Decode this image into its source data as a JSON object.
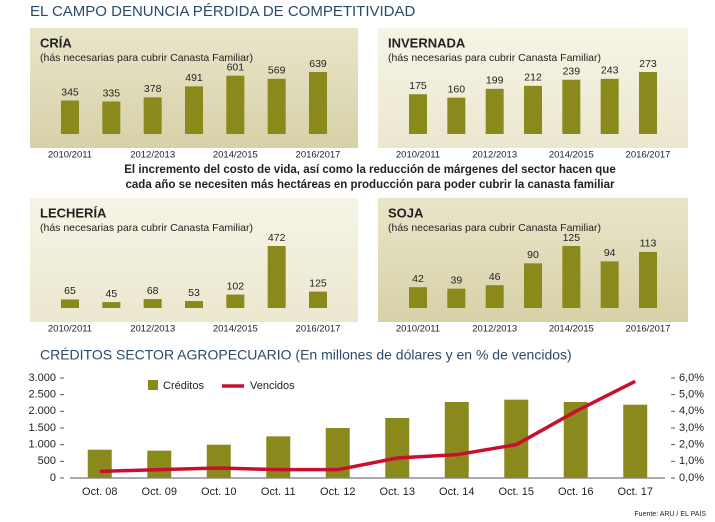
{
  "title": "EL CAMPO DENUNCIA PÉRDIDA DE COMPETITIVIDAD",
  "note": [
    "El incremento del costo de vida, así como la reducción de márgenes del sector hacen que",
    "cada año se necesiten más hectáreas en producción para poder cubrir la canasta familiar"
  ],
  "source": "Fuente: ARU / EL PAIS",
  "chart_data": [
    {
      "type": "bar",
      "title": "CRÍA",
      "subtitle": "(hás necesarias para cubrir Canasta Familiar)",
      "categories": [
        "2010/2011",
        null,
        "2012/2013",
        null,
        "2014/2015",
        null,
        "2016/2017"
      ],
      "values": [
        345,
        335,
        378,
        491,
        601,
        569,
        639
      ],
      "color": "#8a8a1c"
    },
    {
      "type": "bar",
      "title": "INVERNADA",
      "subtitle": "(hás necesarias para cubrir Canasta Familiar)",
      "categories": [
        "2010/2011",
        null,
        "2012/2013",
        null,
        "2014/2015",
        null,
        "2016/2017"
      ],
      "values": [
        175,
        160,
        199,
        212,
        239,
        243,
        273
      ],
      "color": "#8a8a1c"
    },
    {
      "type": "bar",
      "title": "LECHERÍA",
      "subtitle": "(hás necesarias para cubrir Canasta Familiar)",
      "categories": [
        "2010/2011",
        null,
        "2012/2013",
        null,
        "2014/2015",
        null,
        "2016/2017"
      ],
      "values": [
        65,
        45,
        68,
        53,
        102,
        472,
        125
      ],
      "color": "#8a8a1c"
    },
    {
      "type": "bar",
      "title": "SOJA",
      "subtitle": "(hás necesarias para cubrir Canasta Familiar)",
      "categories": [
        "2010/2011",
        null,
        "2012/2013",
        null,
        "2014/2015",
        null,
        "2016/2017"
      ],
      "values": [
        42,
        39,
        46,
        90,
        125,
        94,
        113
      ],
      "color": "#8a8a1c"
    },
    {
      "type": "combo",
      "title": "CRÉDITOS SECTOR AGROPECUARIO (En millones de dólares y en % de vencidos)",
      "categories": [
        "Oct. 08",
        "Oct. 09",
        "Oct. 10",
        "Oct. 11",
        "Oct. 12",
        "Oct. 13",
        "Oct. 14",
        "Oct. 15",
        "Oct. 16",
        "Oct. 17"
      ],
      "series": [
        {
          "name": "Créditos",
          "color": "#8a8a1c",
          "values": [
            850,
            820,
            1000,
            1250,
            1500,
            1800,
            2280,
            2350,
            2280,
            2200
          ]
        },
        {
          "name": "Vencidos",
          "color": "#c8102e",
          "axis": "y2",
          "values": [
            0.4,
            0.5,
            0.6,
            0.5,
            0.5,
            1.2,
            1.4,
            2.0,
            4.0,
            5.8
          ]
        }
      ],
      "ylim": [
        0,
        3000
      ],
      "yticks": [
        {
          "value": 0,
          "label": "0"
        },
        {
          "value": 500,
          "label": "500"
        },
        {
          "value": 1000,
          "label": "1.000"
        },
        {
          "value": 1500,
          "label": "1.500"
        },
        {
          "value": 2000,
          "label": "2.000"
        },
        {
          "value": 2500,
          "label": "2.500"
        },
        {
          "value": 3000,
          "label": "3.000"
        }
      ],
      "y2lim": [
        0,
        6
      ],
      "y2ticks": [
        {
          "value": 0,
          "label": "0,0%"
        },
        {
          "value": 1,
          "label": "1,0%"
        },
        {
          "value": 2,
          "label": "2,0%"
        },
        {
          "value": 3,
          "label": "3,0%"
        },
        {
          "value": 4,
          "label": "4,0%"
        },
        {
          "value": 5,
          "label": "5,0%"
        },
        {
          "value": 6,
          "label": "6,0%"
        }
      ]
    }
  ]
}
